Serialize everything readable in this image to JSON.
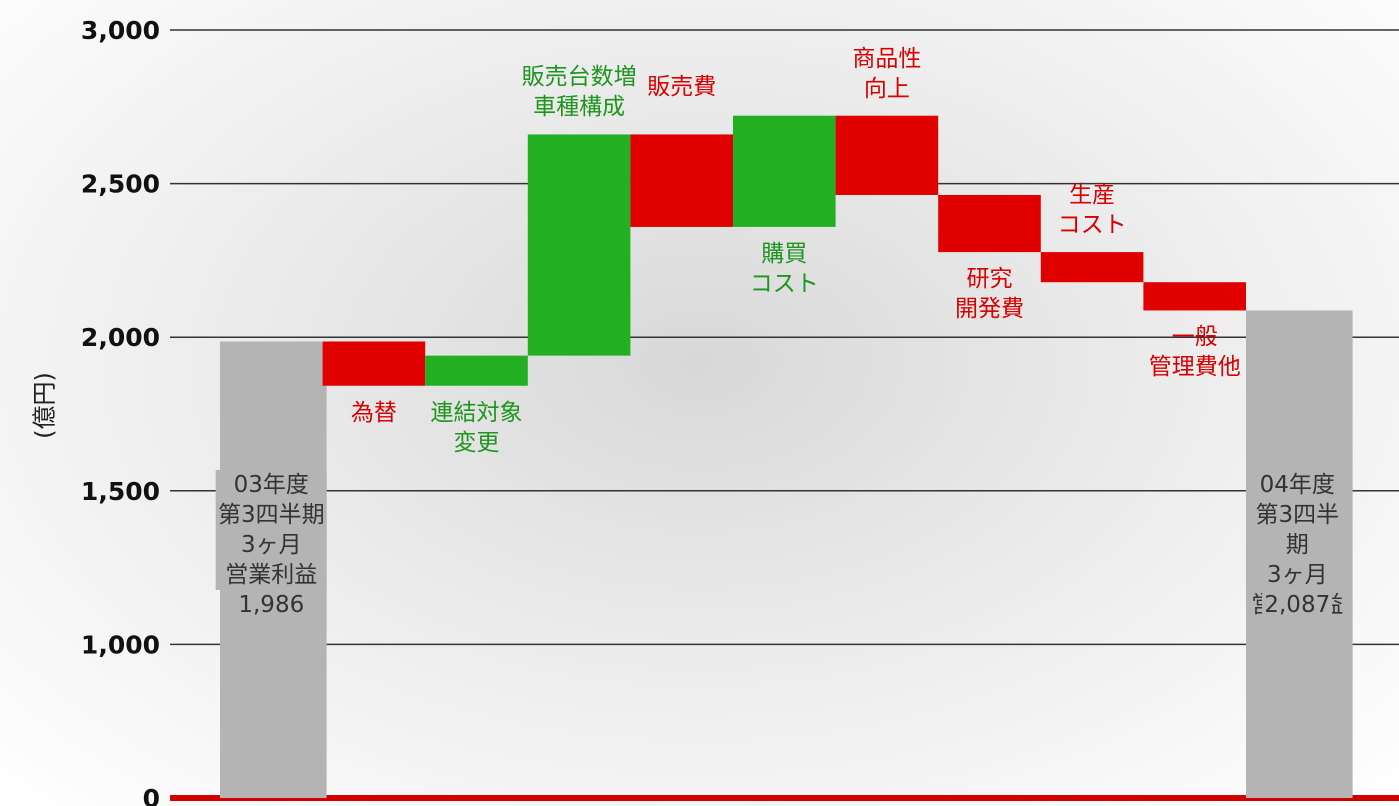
{
  "chart_data": {
    "type": "waterfall",
    "y_label": "(億円)",
    "categories": [
      "03年度\n第3四半期\n3ヶ月\n営業利益",
      "為替",
      "連結対象\n変更",
      "販売台数増\n車種構成",
      "販売費",
      "購買\nコスト",
      "商品性\n向上",
      "研究\n開発費",
      "生産\nコスト",
      "一般\n管理費他",
      "04年度\n第3四半期\n3ヶ月\n営業利益"
    ],
    "values": [
      1986,
      -144,
      98,
      720,
      -301,
      362,
      -258,
      -186,
      -98,
      -92,
      2087
    ],
    "value_labels": [
      "1,986",
      null,
      null,
      null,
      null,
      null,
      null,
      null,
      null,
      null,
      "2,087"
    ],
    "colors": {
      "increase": "#22b022",
      "decrease": "#e00000",
      "total": "#b4b4b4"
    },
    "ylim": [
      0,
      3000
    ],
    "yticks": [
      0,
      {
        "value": 1000,
        "label": "1,000"
      },
      {
        "value": 1500,
        "label": "1,500"
      },
      {
        "value": 2000,
        "label": "2,000"
      },
      {
        "value": 2500,
        "label": "2,500"
      },
      {
        "value": 3000,
        "label": "3,000"
      }
    ],
    "grid": true
  }
}
